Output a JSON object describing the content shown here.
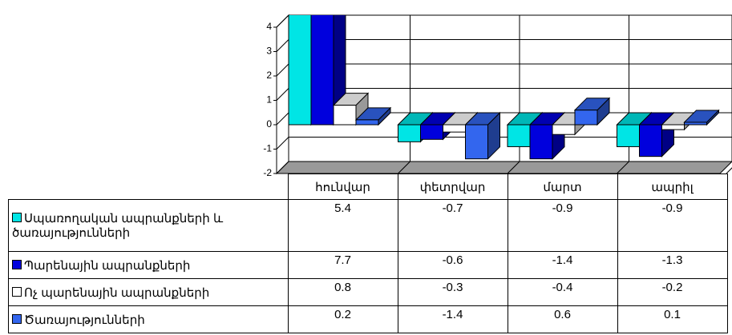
{
  "chart_data": {
    "type": "bar3d",
    "categories": [
      "հունվար",
      "փետրվար",
      "մարտ",
      "ապրիլ"
    ],
    "series": [
      {
        "name": "Սպառողական ապրանքների և ծառայությունների",
        "color": "#00e5e5",
        "values": [
          5.4,
          -0.7,
          -0.9,
          -0.9
        ]
      },
      {
        "name": "Պարենային ապրանքների",
        "color": "#0000dd",
        "values": [
          7.7,
          -0.6,
          -1.4,
          -1.3
        ]
      },
      {
        "name": "Ոչ պարենային  ապրանքների",
        "color": "#ffffff",
        "values": [
          0.8,
          -0.3,
          -0.4,
          -0.2
        ]
      },
      {
        "name": "Ծառայությունների",
        "color": "#3366ee",
        "values": [
          0.2,
          -1.4,
          0.6,
          0.1
        ]
      }
    ],
    "ylim": [
      -2,
      4
    ],
    "yticks": [
      -2,
      -1,
      0,
      1,
      2,
      3,
      4
    ],
    "grid": true
  }
}
